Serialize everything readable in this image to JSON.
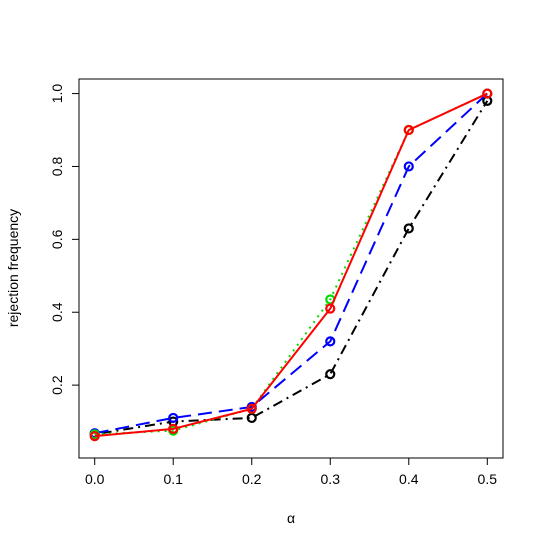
{
  "chart_data": {
    "type": "line",
    "x_label": "α",
    "y_label": "rejection frequency",
    "x": [
      0,
      0.1,
      0.2,
      0.3,
      0.4,
      0.5
    ],
    "series": [
      {
        "color": "#000000",
        "dash": "dashdot",
        "values": [
          0.065,
          0.1,
          0.11,
          0.23,
          0.63,
          0.98
        ]
      },
      {
        "color": "#0000ff",
        "dash": "dashed",
        "values": [
          0.068,
          0.11,
          0.14,
          0.32,
          0.8,
          1.0
        ]
      },
      {
        "color": "#00dd00",
        "dash": "dotted",
        "values": [
          0.065,
          0.075,
          0.135,
          0.435,
          0.9,
          1.0
        ]
      },
      {
        "color": "#ff0000",
        "dash": "solid",
        "values": [
          0.06,
          0.08,
          0.135,
          0.41,
          0.9,
          1.0
        ]
      }
    ],
    "xlim": [
      -0.02,
      0.52
    ],
    "ylim": [
      0,
      1.04
    ],
    "xticks": [
      {
        "value": 0,
        "label": "0.0"
      },
      0.1,
      0.2,
      0.3,
      0.4,
      0.5
    ],
    "yticks": [
      0.2,
      0.4,
      0.6,
      0.8,
      {
        "value": 1,
        "label": "1.0"
      }
    ]
  }
}
